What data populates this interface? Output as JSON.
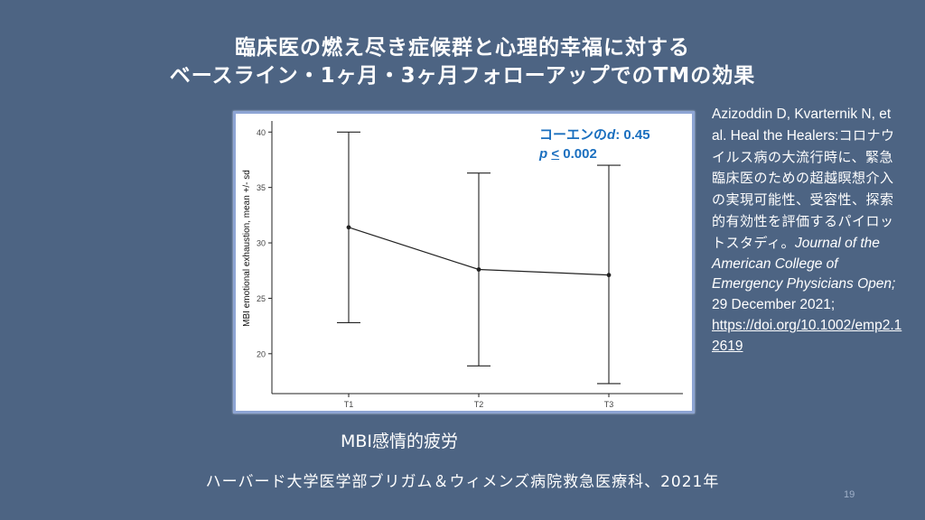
{
  "slide": {
    "title_line1": "臨床医の燃え尽き症候群と心理的幸福に対する",
    "title_line2": "ベースライン・1ヶ月・3ヶ月フォローアップでのTMの効果",
    "caption": "MBI感情的疲労",
    "footer": "ハーバード大学医学部ブリガム＆ウィメンズ病院救急医療科、2021年",
    "page_number": "19",
    "stat_line1_prefix": "コーエンの",
    "stat_line1_symbol": "d",
    "stat_line1_value": ": 0.45",
    "stat_line2_symbol": "p",
    "stat_line2_op": "<",
    "stat_line2_value": " 0.002"
  },
  "citation": {
    "authors": "Azizoddin D, Kvarternik N, et al. Heal the Healers:",
    "title_jp": "コロナウイルス病の大流行時に、緊急臨床医のための超越瞑想介入の実現可能性、受容性、探索的有効性を評価するパイロットスタディ",
    "journal_lead": "。",
    "journal": "Journal of the American College of Emergency Physicians Open;",
    "date": " 29 December 2021;",
    "doi": "https://doi.org/10.1002/emp2.12619"
  },
  "chart_data": {
    "type": "line",
    "categories": [
      "T1",
      "T2",
      "T3"
    ],
    "series": [
      {
        "values": [
          31.4,
          27.6,
          27.1
        ],
        "error_low": [
          22.8,
          18.9,
          17.3
        ],
        "error_high": [
          40.0,
          36.3,
          37.0
        ]
      }
    ],
    "ylabel": "MBI emotional exhaustion, mean +/- sd",
    "xlabel": "",
    "yticks": [
      20,
      25,
      30,
      35,
      40
    ],
    "ylim": [
      16.4,
      41.0
    ],
    "grid": false,
    "colors": {
      "line": "#222222",
      "frame_border": "#8ea5d4",
      "stat_text": "#1a6fbf"
    }
  }
}
